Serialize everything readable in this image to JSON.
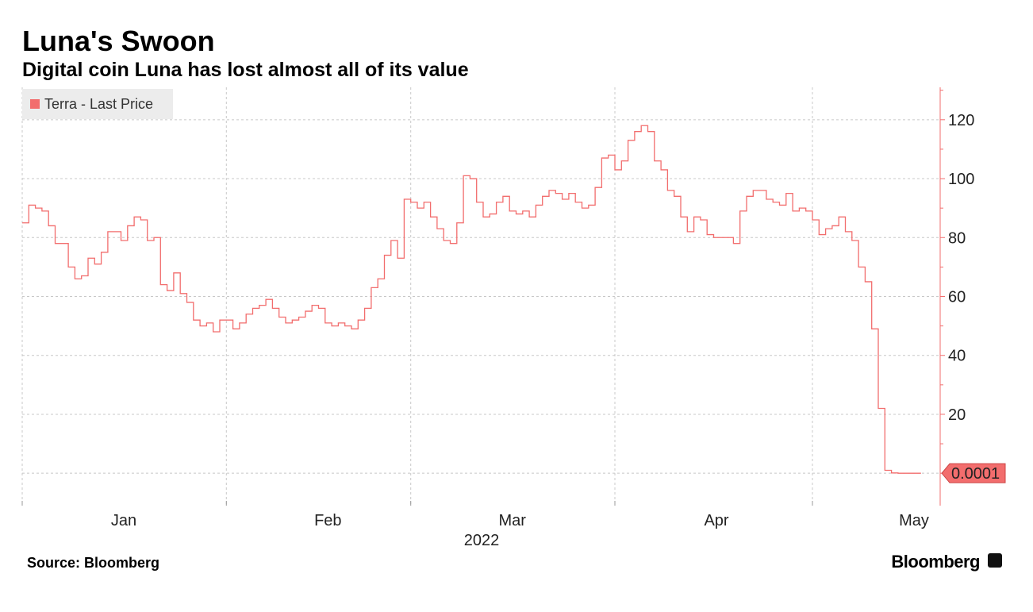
{
  "chart_data": {
    "type": "line",
    "title": "Luna's Swoon",
    "subtitle": "Digital coin Luna has lost almost all of its value",
    "categories": [
      "Jan",
      "Feb",
      "Mar",
      "Apr",
      "May"
    ],
    "x_axis_label": "2022",
    "series": [
      {
        "name": "Terra - Last Price",
        "color": "#f26d6d",
        "values": [
          [
            85,
            91,
            90,
            89,
            84,
            78,
            78,
            70,
            66,
            67,
            73,
            71,
            75,
            82,
            82,
            79,
            84,
            87,
            86,
            79,
            80,
            64,
            62,
            68,
            61,
            58,
            52,
            50,
            51,
            48,
            52
          ],
          [
            52,
            49,
            51,
            54,
            56,
            57,
            59,
            56,
            53,
            51,
            52,
            53,
            55,
            57,
            56,
            51,
            50,
            51,
            50,
            49,
            52,
            56,
            63,
            66,
            74,
            79,
            73,
            93
          ],
          [
            92,
            90,
            92,
            87,
            83,
            79,
            78,
            85,
            101,
            100,
            92,
            87,
            88,
            92,
            94,
            89,
            88,
            89,
            87,
            91,
            94,
            96,
            95,
            93,
            95,
            92,
            90,
            91,
            97,
            107,
            108
          ],
          [
            103,
            106,
            113,
            116,
            118,
            116,
            106,
            103,
            96,
            94,
            87,
            82,
            87,
            86,
            81,
            80,
            80,
            80,
            78,
            89,
            94,
            96,
            96,
            93,
            92,
            91,
            95,
            89,
            90,
            89
          ],
          [
            86,
            81,
            83,
            84,
            87,
            82,
            79,
            70,
            65,
            49,
            22,
            1,
            0.1,
            0.0001,
            0.0001,
            0.0001,
            0.0001
          ]
        ]
      }
    ],
    "ylim": [
      -11,
      131
    ],
    "yticks": [
      0,
      20,
      40,
      60,
      80,
      100,
      120
    ],
    "grid": true,
    "source": "Source: Bloomberg",
    "brand": "Bloomberg"
  }
}
